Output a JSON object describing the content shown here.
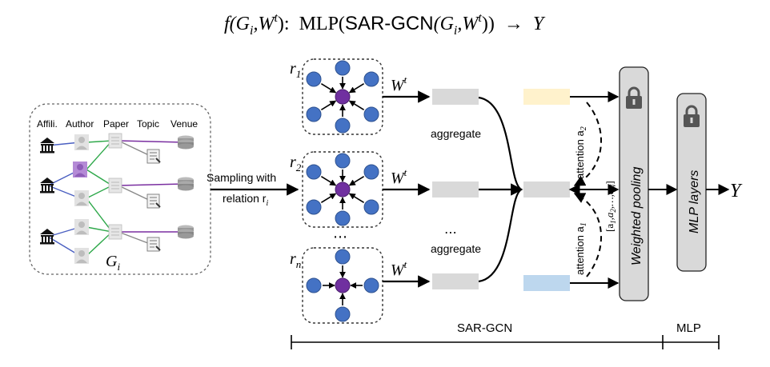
{
  "formula": {
    "lhs": "f(G",
    "lhs_sub": "i",
    "lhs_mid": ",W",
    "lhs_sup": "t",
    "lhs_close": "):",
    "mlp": "MLP(",
    "sargcn": "SAR-GCN",
    "arg_open": "(G",
    "arg_sub": "i",
    "arg_mid": ",W",
    "arg_sup": "t",
    "arg_close": "))",
    "arrow": "→",
    "output": "Y"
  },
  "graph_panel": {
    "headers": [
      "Affili.",
      "Author",
      "Paper",
      "Topic",
      "Venue"
    ],
    "label": "G",
    "label_sub": "i"
  },
  "sampling": {
    "line1": "Sampling with",
    "line2": "relation r",
    "line2_sub": "i"
  },
  "relations": [
    {
      "label": "r",
      "sub": "1"
    },
    {
      "label": "r",
      "sub": "2"
    },
    {
      "label": "r",
      "sub": "n"
    }
  ],
  "weight": {
    "base": "W",
    "sup": "t"
  },
  "ellipsis": "⋯",
  "aggregate": [
    "aggregate",
    "aggregate"
  ],
  "agg_ellipsis": "⋯",
  "attention": {
    "top": "attention a",
    "top_sub": "2",
    "bottom": "attention a",
    "bottom_sub": "1",
    "vector": "[a",
    "vector_rest": "1",
    "vector_mid": ",a",
    "vector_2": "2",
    "vector_dots": ",…,a",
    "vector_N": "N",
    "vector_close": "]"
  },
  "weighted_pooling": "Weighted pooling",
  "mlp_layers": "MLP layers",
  "output": "Y",
  "bottom_labels": {
    "sargcn": "SAR-GCN",
    "mlp": "MLP"
  },
  "colors": {
    "node_blue": "#4472c4",
    "node_purple": "#7030a0",
    "bar_gray": "#d9d9d9",
    "bar_yellow": "#fff2cc",
    "bar_blue": "#bdd7ee",
    "pool_fill": "#d9d9d9",
    "edge_blue": "#4a5fc1",
    "edge_green": "#2ea84a",
    "edge_purple": "#7a2fa0"
  },
  "icons": [
    "bank-icon",
    "author-avatar-icon",
    "paper-icon",
    "topic-icon",
    "venue-stack-icon",
    "lock-icon"
  ]
}
